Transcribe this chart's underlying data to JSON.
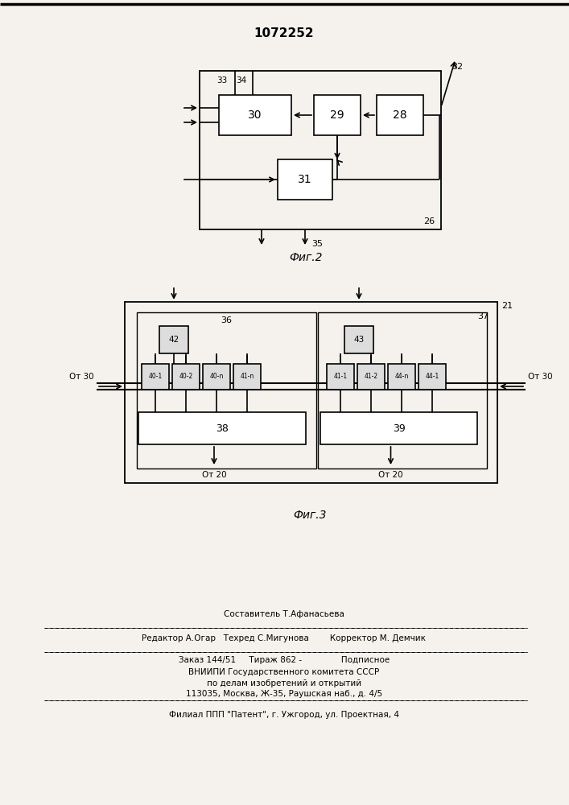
{
  "title": "1072252",
  "bg_color": "#f5f2ed",
  "fig2_label": "Фиг.2",
  "fig3_label": "Фиг.3",
  "footer": {
    "line1": "Составитель Т.Афанасьева",
    "line2": "Редактор А.Огар   Техред С.Мигунова        Корректор М. Демчик",
    "line3": "Заказ 144/51     Тираж 862 -               Подписное",
    "line4": "ВНИИПИ Государственного комитета СССР",
    "line5": "по делам изобретений и открытий",
    "line6": "113035, Москва, Ж-35, Раушская наб., д. 4/5",
    "line7": "Филиал ППП \"Патент\", г. Ужгород, ул. Проектная, 4"
  }
}
